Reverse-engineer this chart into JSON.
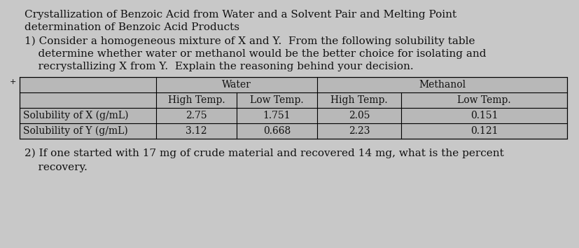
{
  "title_line1": "Crystallization of Benzoic Acid from Water and a Solvent Pair and Melting Point",
  "title_line2": "determination of Benzoic Acid Products",
  "question1_line1": "1) Consider a homogeneous mixture of X and Y.  From the following solubility table",
  "question1_line2": "    determine whether water or methanol would be the better choice for isolating and",
  "question1_line3": "    recrystallizing X from Y.  Explain the reasoning behind your decision.",
  "question2_line1": "2) If one started with 17 mg of crude material and recovered 14 mg, what is the percent",
  "question2_line2": "    recovery.",
  "table_row_x": [
    "Solubility of X (g/mL)",
    "2.75",
    "1.751",
    "2.05",
    "0.151"
  ],
  "table_row_y": [
    "Solubility of Y (g/mL)",
    "3.12",
    "0.668",
    "2.23",
    "0.121"
  ],
  "bg_color": "#c8c8c8",
  "table_bg_color": "#b8b8b8",
  "text_color": "#111111",
  "font_size_title": 11.0,
  "font_size_body": 11.0,
  "font_size_table": 10.0,
  "font_size_small": 8.0
}
